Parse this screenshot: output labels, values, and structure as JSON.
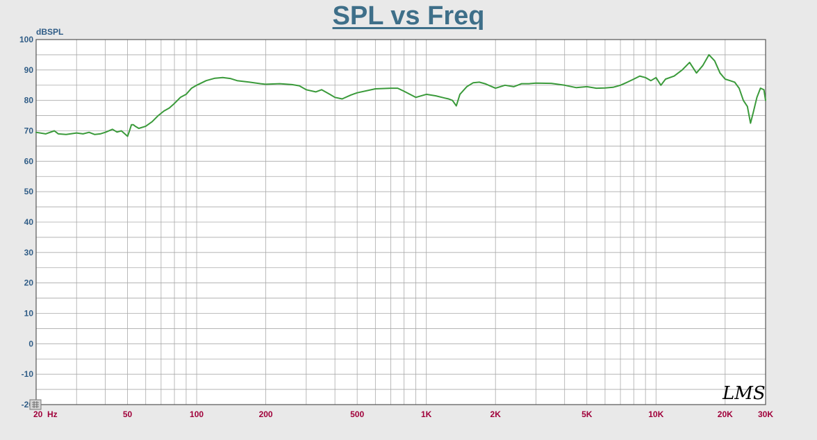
{
  "chart_data": {
    "type": "line",
    "title": "SPL vs Freq",
    "ylabel": "dBSPL",
    "xscale": "log",
    "xlim": [
      20,
      30000
    ],
    "ylim": [
      -20,
      100
    ],
    "grid": true,
    "yticks": [
      100,
      90,
      80,
      70,
      60,
      50,
      40,
      30,
      20,
      10,
      0,
      -10,
      -20
    ],
    "ytick_labels": [
      "100",
      "90",
      "80",
      "70",
      "60",
      "50",
      "40",
      "30",
      "20",
      "10",
      "0",
      "-10",
      "-20"
    ],
    "xticks": [
      {
        "label": "20  Hz",
        "value": 20
      },
      {
        "label": "50",
        "value": 50
      },
      {
        "label": "100",
        "value": 100
      },
      {
        "label": "200",
        "value": 200
      },
      {
        "label": "500",
        "value": 500
      },
      {
        "label": "1K",
        "value": 1000
      },
      {
        "label": "2K",
        "value": 2000
      },
      {
        "label": "5K",
        "value": 5000
      },
      {
        "label": "10K",
        "value": 10000
      },
      {
        "label": "20K",
        "value": 20000
      },
      {
        "label": "30K",
        "value": 30000
      }
    ],
    "series": [
      {
        "color": "#3a9a3a",
        "x": [
          20,
          22,
          24,
          25,
          27,
          30,
          32,
          34,
          36,
          38,
          40,
          43,
          45,
          47,
          50,
          51,
          52,
          53,
          54,
          56,
          60,
          64,
          68,
          72,
          76,
          80,
          85,
          90,
          95,
          100,
          110,
          120,
          130,
          140,
          150,
          170,
          190,
          200,
          230,
          260,
          280,
          300,
          330,
          350,
          380,
          400,
          430,
          470,
          500,
          600,
          700,
          750,
          800,
          900,
          1000,
          1100,
          1200,
          1250,
          1300,
          1350,
          1400,
          1500,
          1600,
          1700,
          1800,
          2000,
          2200,
          2400,
          2600,
          2800,
          3000,
          3500,
          4000,
          4500,
          5000,
          5500,
          6000,
          6500,
          7000,
          7500,
          8000,
          8500,
          9000,
          9500,
          10000,
          10500,
          11000,
          12000,
          13000,
          14000,
          15000,
          16000,
          17000,
          18000,
          19000,
          20000,
          21000,
          22000,
          23000,
          24000,
          25000,
          25800,
          26500,
          27500,
          28500,
          29500,
          30000
        ],
        "y": [
          69.5,
          69,
          70,
          69,
          68.8,
          69.3,
          69,
          69.5,
          68.8,
          69,
          69.5,
          70.5,
          69.6,
          70,
          68.2,
          70,
          72,
          72,
          71.5,
          70.8,
          71.5,
          73,
          75,
          76.5,
          77.5,
          79,
          81,
          82,
          84,
          85,
          86.5,
          87.3,
          87.5,
          87.2,
          86.5,
          86,
          85.5,
          85.3,
          85.5,
          85.2,
          84.8,
          83.5,
          82.8,
          83.5,
          82,
          81,
          80.5,
          81.8,
          82.5,
          83.8,
          84,
          84,
          83,
          81,
          82,
          81.5,
          80.8,
          80.5,
          80,
          78.2,
          82,
          84.5,
          85.8,
          86,
          85.5,
          84,
          85,
          84.5,
          85.5,
          85.5,
          85.7,
          85.6,
          85,
          84.2,
          84.5,
          84,
          84.1,
          84.3,
          85,
          86,
          87,
          88,
          87.5,
          86.5,
          87.5,
          85,
          87,
          88,
          90,
          92.5,
          89,
          91.5,
          95,
          93,
          89,
          87,
          86.5,
          86,
          84,
          80,
          78,
          72.5,
          76,
          81,
          84,
          83.5,
          80
        ]
      }
    ]
  },
  "watermark": "LMS",
  "colors": {
    "background": "#e9e9e9",
    "plot_bg": "#ffffff",
    "grid": "#a9a9a9",
    "title": "#3e6f89",
    "ytick": "#2f5c86",
    "xtick": "#a0003a",
    "line": "#3a9a3a"
  }
}
